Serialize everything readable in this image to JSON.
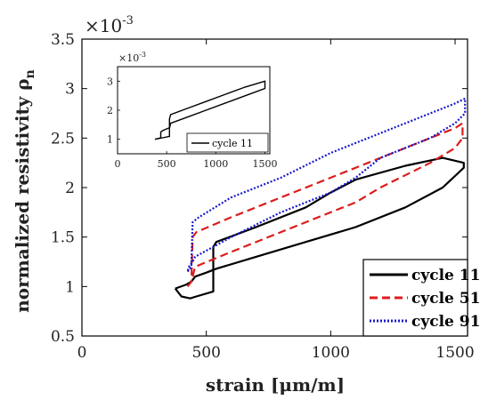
{
  "chart_data": {
    "type": "line",
    "xlabel": "strain [μm/m]",
    "ylabel": "normalized resistivity ρ",
    "ylabel_subscript": "n",
    "y_multiplier": "×10",
    "y_multiplier_exp": "-3",
    "xlim": [
      0,
      1550
    ],
    "ylim": [
      0.5,
      3.5
    ],
    "x_ticks": [
      "0",
      "500",
      "1000",
      "1500"
    ],
    "y_ticks": [
      "0.5",
      "1",
      "1.5",
      "2",
      "2.5",
      "3",
      "3.5"
    ],
    "legend_position": "bottom-right",
    "series": [
      {
        "name": "cycle 11",
        "color": "#000000",
        "style": "solid",
        "x": [
          375,
          420,
          440,
          455,
          500,
          540,
          700,
          900,
          1100,
          1300,
          1450,
          1535,
          1535,
          1450,
          1300,
          1100,
          1000,
          900,
          700,
          540,
          528,
          528,
          460,
          435,
          400,
          375
        ],
        "y": [
          0.98,
          1.02,
          1.05,
          1.1,
          1.14,
          1.18,
          1.3,
          1.45,
          1.6,
          1.8,
          2.0,
          2.2,
          2.25,
          2.3,
          2.22,
          2.08,
          1.95,
          1.8,
          1.6,
          1.45,
          1.4,
          0.95,
          0.9,
          0.88,
          0.9,
          0.98
        ]
      },
      {
        "name": "cycle 51",
        "color": "#dd1c1c",
        "style": "dashed",
        "x": [
          425,
          440,
          445,
          460,
          600,
          800,
          1000,
          1200,
          1400,
          1500,
          1530,
          1530,
          1500,
          1400,
          1200,
          1100,
          1000,
          800,
          600,
          455,
          445,
          440,
          425
        ],
        "y": [
          1.0,
          1.05,
          1.5,
          1.55,
          1.7,
          1.9,
          2.1,
          2.3,
          2.5,
          2.6,
          2.65,
          2.5,
          2.4,
          2.25,
          2.0,
          1.85,
          1.75,
          1.55,
          1.35,
          1.2,
          1.1,
          1.05,
          1.0
        ]
      },
      {
        "name": "cycle 91",
        "color": "#1818cc",
        "style": "dotted",
        "x": [
          425,
          440,
          445,
          470,
          600,
          800,
          1000,
          1200,
          1400,
          1500,
          1540,
          1540,
          1500,
          1400,
          1200,
          1100,
          1000,
          800,
          600,
          455,
          445,
          430,
          425
        ],
        "y": [
          1.15,
          1.2,
          1.65,
          1.7,
          1.9,
          2.1,
          2.35,
          2.55,
          2.75,
          2.85,
          2.9,
          2.75,
          2.65,
          2.5,
          2.3,
          2.1,
          1.95,
          1.75,
          1.5,
          1.3,
          1.25,
          1.2,
          1.15
        ]
      }
    ],
    "inset": {
      "y_multiplier": "×10",
      "y_multiplier_exp": "-3",
      "xlim": [
        0,
        1550
      ],
      "ylim": [
        0.5,
        3.5
      ],
      "x_ticks": [
        "0",
        "500",
        "1000",
        "1500"
      ],
      "y_ticks": [
        "1",
        "2",
        "3"
      ],
      "legend_entry": "cycle 11",
      "series": {
        "color": "#000000",
        "x": [
          380,
          440,
          440,
          460,
          530,
          540,
          700,
          900,
          1100,
          1300,
          1500,
          1500,
          1300,
          1100,
          900,
          700,
          540,
          528,
          528,
          460,
          380
        ],
        "y": [
          1.0,
          1.05,
          1.25,
          1.3,
          1.4,
          1.55,
          1.75,
          2.0,
          2.25,
          2.5,
          2.75,
          3.0,
          2.8,
          2.55,
          2.3,
          2.05,
          1.85,
          1.7,
          1.1,
          1.05,
          1.0
        ]
      }
    }
  }
}
